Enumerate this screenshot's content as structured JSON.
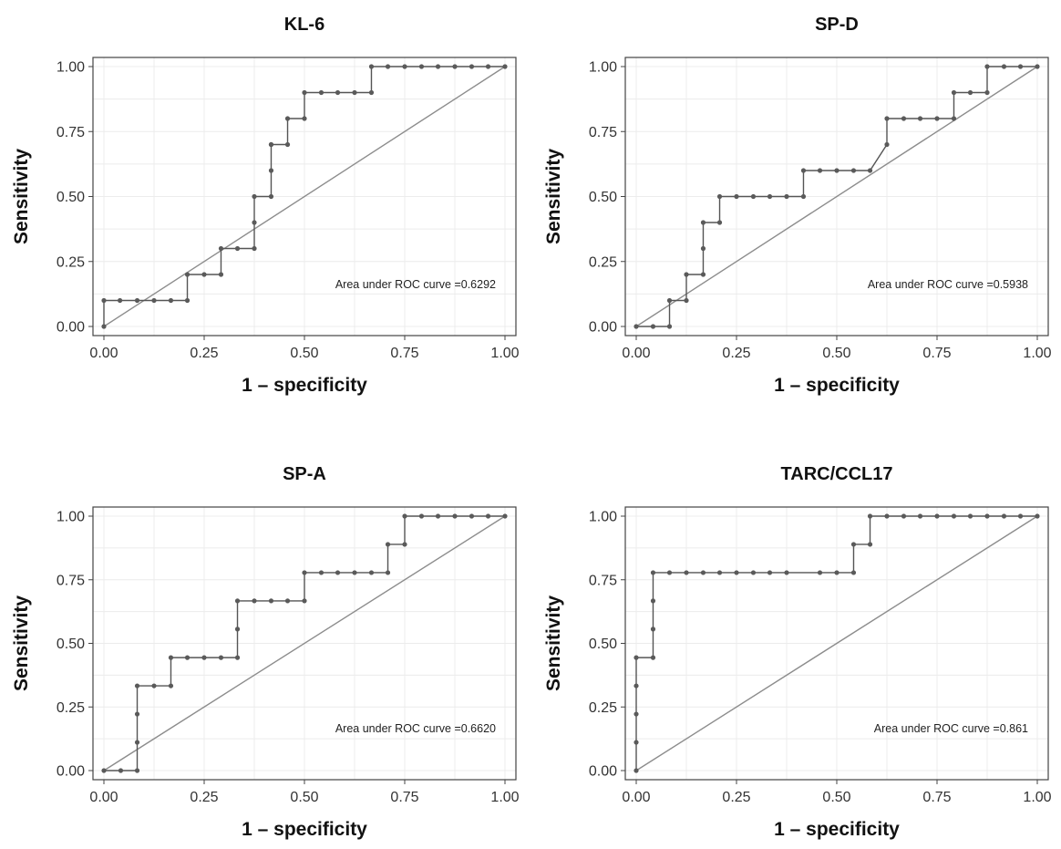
{
  "figure": {
    "colors": {
      "curve": "#555555",
      "points": "#5a5a5a",
      "diagonal": "#8c8c8c",
      "grid": "#ececec",
      "frame": "#444444",
      "background": "#ffffff"
    }
  },
  "chart_data": [
    {
      "type": "line",
      "title": "KL-6",
      "xlabel": "1 – specificity",
      "ylabel": "Sensitivity",
      "xlim": [
        0,
        1
      ],
      "ylim": [
        0,
        1
      ],
      "xticks": [
        0,
        0.25,
        0.5,
        0.75,
        1
      ],
      "yticks": [
        0,
        0.25,
        0.5,
        0.75,
        1
      ],
      "xtick_labels": [
        "0.00",
        "0.25",
        "0.50",
        "0.75",
        "1.00"
      ],
      "ytick_labels": [
        "0.00",
        "0.25",
        "0.50",
        "0.75",
        "1.00"
      ],
      "grid": true,
      "annotation": "Area under ROC curve =0.6292",
      "series": [
        {
          "x": [
            0,
            0,
            0.04,
            0.083,
            0.125,
            0.167,
            0.208,
            0.208,
            0.25,
            0.292,
            0.292,
            0.333,
            0.375,
            0.375,
            0.375,
            0.417,
            0.417,
            0.417,
            0.417,
            0.458,
            0.458,
            0.5,
            0.5,
            0.542,
            0.583,
            0.625,
            0.667,
            0.667,
            0.708,
            0.75,
            0.792,
            0.833,
            0.875,
            0.917,
            0.958,
            1
          ],
          "y": [
            0,
            0.1,
            0.1,
            0.1,
            0.1,
            0.1,
            0.1,
            0.2,
            0.2,
            0.2,
            0.3,
            0.3,
            0.3,
            0.4,
            0.5,
            0.5,
            0.6,
            0.7,
            0.7,
            0.7,
            0.8,
            0.8,
            0.9,
            0.9,
            0.9,
            0.9,
            0.9,
            1,
            1,
            1,
            1,
            1,
            1,
            1,
            1,
            1
          ]
        }
      ],
      "diagonal": true
    },
    {
      "type": "line",
      "title": "SP-D",
      "xlabel": "1 – specificity",
      "ylabel": "Sensitivity",
      "xlim": [
        0,
        1
      ],
      "ylim": [
        0,
        1
      ],
      "xticks": [
        0,
        0.25,
        0.5,
        0.75,
        1
      ],
      "yticks": [
        0,
        0.25,
        0.5,
        0.75,
        1
      ],
      "xtick_labels": [
        "0.00",
        "0.25",
        "0.50",
        "0.75",
        "1.00"
      ],
      "ytick_labels": [
        "0.00",
        "0.25",
        "0.50",
        "0.75",
        "1.00"
      ],
      "grid": true,
      "annotation": "Area under ROC curve =0.5938",
      "series": [
        {
          "x": [
            0,
            0.042,
            0.083,
            0.083,
            0.125,
            0.125,
            0.167,
            0.167,
            0.167,
            0.208,
            0.208,
            0.25,
            0.292,
            0.333,
            0.375,
            0.417,
            0.417,
            0.458,
            0.5,
            0.542,
            0.583,
            0.625,
            0.625,
            0.667,
            0.708,
            0.75,
            0.792,
            0.792,
            0.833,
            0.875,
            0.875,
            0.917,
            0.958,
            1
          ],
          "y": [
            0,
            0,
            0,
            0.1,
            0.1,
            0.2,
            0.2,
            0.3,
            0.4,
            0.4,
            0.5,
            0.5,
            0.5,
            0.5,
            0.5,
            0.5,
            0.6,
            0.6,
            0.6,
            0.6,
            0.6,
            0.7,
            0.8,
            0.8,
            0.8,
            0.8,
            0.8,
            0.9,
            0.9,
            0.9,
            1,
            1,
            1,
            1
          ]
        }
      ],
      "diagonal": true
    },
    {
      "type": "line",
      "title": "SP-A",
      "xlabel": "1 – specificity",
      "ylabel": "Sensitivity",
      "xlim": [
        0,
        1
      ],
      "ylim": [
        0,
        1
      ],
      "xticks": [
        0,
        0.25,
        0.5,
        0.75,
        1
      ],
      "yticks": [
        0,
        0.25,
        0.5,
        0.75,
        1
      ],
      "xtick_labels": [
        "0.00",
        "0.25",
        "0.50",
        "0.75",
        "1.00"
      ],
      "ytick_labels": [
        "0.00",
        "0.25",
        "0.50",
        "0.75",
        "1.00"
      ],
      "grid": true,
      "annotation": "Area under ROC curve =0.6620",
      "series": [
        {
          "x": [
            0,
            0.042,
            0.083,
            0.083,
            0.083,
            0.083,
            0.125,
            0.167,
            0.167,
            0.208,
            0.25,
            0.292,
            0.333,
            0.333,
            0.333,
            0.375,
            0.417,
            0.458,
            0.5,
            0.5,
            0.542,
            0.583,
            0.625,
            0.667,
            0.708,
            0.708,
            0.75,
            0.75,
            0.792,
            0.833,
            0.875,
            0.917,
            0.958,
            1
          ],
          "y": [
            0,
            0,
            0,
            0.111,
            0.222,
            0.333,
            0.333,
            0.333,
            0.444,
            0.444,
            0.444,
            0.444,
            0.444,
            0.556,
            0.667,
            0.667,
            0.667,
            0.667,
            0.667,
            0.778,
            0.778,
            0.778,
            0.778,
            0.778,
            0.778,
            0.889,
            0.889,
            1,
            1,
            1,
            1,
            1,
            1,
            1
          ]
        }
      ],
      "diagonal": true
    },
    {
      "type": "line",
      "title": "TARC/CCL17",
      "xlabel": "1 – specificity",
      "ylabel": "Sensitivity",
      "xlim": [
        0,
        1
      ],
      "ylim": [
        0,
        1
      ],
      "xticks": [
        0,
        0.25,
        0.5,
        0.75,
        1
      ],
      "yticks": [
        0,
        0.25,
        0.5,
        0.75,
        1
      ],
      "xtick_labels": [
        "0.00",
        "0.25",
        "0.50",
        "0.75",
        "1.00"
      ],
      "ytick_labels": [
        "0.00",
        "0.25",
        "0.50",
        "0.75",
        "1.00"
      ],
      "grid": true,
      "annotation": "Area under ROC curve =0.861",
      "series": [
        {
          "x": [
            0,
            0,
            0,
            0,
            0,
            0.042,
            0.042,
            0.042,
            0.042,
            0.083,
            0.125,
            0.167,
            0.208,
            0.25,
            0.292,
            0.333,
            0.375,
            0.458,
            0.5,
            0.542,
            0.542,
            0.583,
            0.583,
            0.625,
            0.667,
            0.708,
            0.75,
            0.792,
            0.833,
            0.875,
            0.917,
            0.958,
            1
          ],
          "y": [
            0,
            0.111,
            0.222,
            0.333,
            0.444,
            0.444,
            0.556,
            0.667,
            0.778,
            0.778,
            0.778,
            0.778,
            0.778,
            0.778,
            0.778,
            0.778,
            0.778,
            0.778,
            0.778,
            0.778,
            0.889,
            0.889,
            1,
            1,
            1,
            1,
            1,
            1,
            1,
            1,
            1,
            1,
            1
          ]
        }
      ],
      "diagonal": true
    }
  ]
}
